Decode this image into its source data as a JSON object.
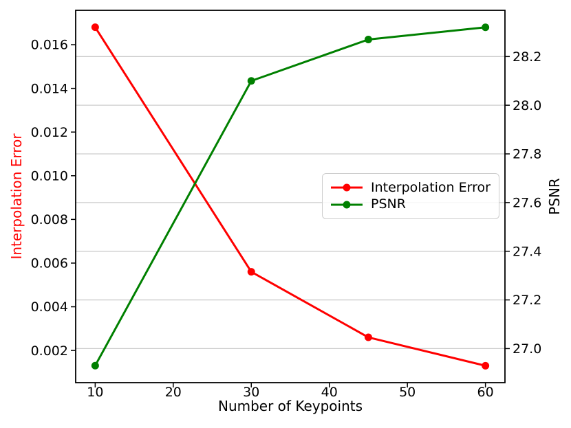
{
  "chart_data": {
    "type": "line",
    "title": "",
    "xlabel": "Number of Keypoints",
    "x": [
      10,
      30,
      45,
      60
    ],
    "x_axis": {
      "ticks": [
        10,
        20,
        30,
        40,
        50,
        60
      ],
      "tick_labels": [
        "10",
        "20",
        "30",
        "40",
        "50",
        "60"
      ],
      "lim": [
        7.5,
        62.5
      ]
    },
    "left_axis": {
      "label": "Interpolation Error",
      "color": "#ff0000",
      "ticks": [
        0.002,
        0.004,
        0.006,
        0.008,
        0.01,
        0.012,
        0.014,
        0.016
      ],
      "tick_labels": [
        "0.002",
        "0.004",
        "0.006",
        "0.008",
        "0.010",
        "0.012",
        "0.014",
        "0.016"
      ],
      "lim": [
        0.000525,
        0.017575
      ]
    },
    "right_axis": {
      "label": "PSNR",
      "color": "#000000",
      "ticks": [
        27.0,
        27.2,
        27.4,
        27.6,
        27.8,
        28.0,
        28.2
      ],
      "tick_labels": [
        "27.0",
        "27.2",
        "27.4",
        "27.6",
        "27.8",
        "28.0",
        "28.2"
      ],
      "lim": [
        26.86,
        28.39
      ]
    },
    "series": [
      {
        "name": "Interpolation Error",
        "axis": "left",
        "color": "#ff0000",
        "marker": "circle",
        "values": [
          0.0168,
          0.0056,
          0.0026,
          0.0013
        ]
      },
      {
        "name": "PSNR",
        "axis": "right",
        "color": "#008000",
        "marker": "circle",
        "values": [
          26.93,
          28.1,
          28.27,
          28.32
        ]
      }
    ],
    "grid": {
      "axis": "y",
      "source": "right",
      "color": "#cccccc",
      "on": true
    },
    "legend": {
      "position": "center-right"
    }
  }
}
